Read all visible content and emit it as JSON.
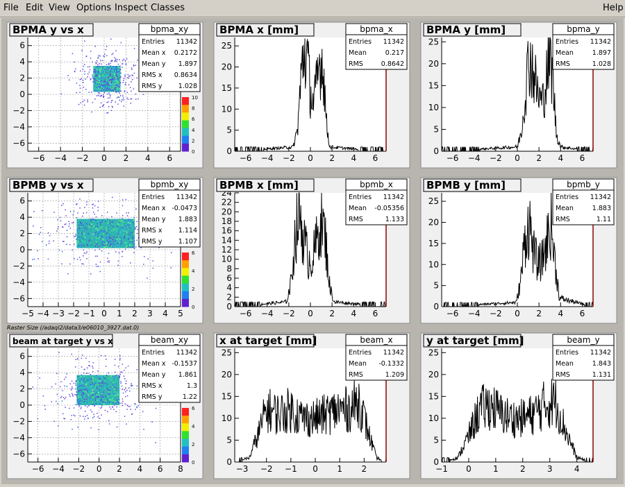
{
  "menu": {
    "items": [
      "File",
      "Edit",
      "View",
      "Options",
      "Inspect",
      "Classes"
    ],
    "help": "Help"
  },
  "caption": "Raster Size (/adaql2/data3/e06010_3927.dat.0)",
  "colors": {
    "pad_bg": "#f0f0f0",
    "frame_bg": "#b8b5ae",
    "histo_line": "#000000",
    "hist_axis_right": "#8b0000",
    "grid": "#909090"
  },
  "palette_labels": {
    "bpma_xy": [
      "0",
      "2",
      "4",
      "6",
      "8",
      "10"
    ],
    "bpmb_xy": [
      "0",
      "2",
      "4",
      "6"
    ],
    "beam_xy": [
      "0",
      "2",
      "4",
      "6"
    ]
  },
  "chart_data": [
    {
      "id": "bpma_xy",
      "type": "heatmap",
      "title": "BPMA y vs x",
      "xlim": [
        -7,
        7
      ],
      "ylim": [
        -7,
        7
      ],
      "xticks": [
        -6,
        -4,
        -2,
        0,
        2,
        4,
        6
      ],
      "yticks": [
        -6,
        -4,
        -2,
        0,
        2,
        4,
        6
      ],
      "core": {
        "x": [
          -1.0,
          1.5
        ],
        "y": [
          0.3,
          3.5
        ]
      },
      "grid": true,
      "stats": {
        "name": "bpma_xy",
        "rows": [
          [
            "Entries",
            "11342"
          ],
          [
            "Mean x",
            "0.2172"
          ],
          [
            "Mean y",
            "1.897"
          ],
          [
            "RMS x",
            "0.8634"
          ],
          [
            "RMS y",
            "1.028"
          ]
        ]
      }
    },
    {
      "id": "bpma_x",
      "type": "line",
      "title": "BPMA x [mm]",
      "xlim": [
        -7,
        7
      ],
      "ylim": [
        0,
        27
      ],
      "xticks": [
        -6,
        -4,
        -2,
        0,
        2,
        4,
        6
      ],
      "yticks": [
        0,
        5,
        10,
        15,
        20,
        25
      ],
      "profile": {
        "x": [
          -7,
          -1.6,
          -1.2,
          -0.9,
          -0.6,
          -0.3,
          0,
          0.3,
          0.6,
          0.9,
          1.2,
          1.5,
          1.8,
          7
        ],
        "y": [
          0,
          1,
          5,
          16,
          24,
          22,
          14,
          11,
          16,
          22,
          20,
          6,
          1,
          0
        ]
      },
      "stats": {
        "name": "bpma_x",
        "rows": [
          [
            "Entries",
            "11342"
          ],
          [
            "Mean",
            "0.217"
          ],
          [
            "RMS",
            "0.8642"
          ]
        ]
      }
    },
    {
      "id": "bpma_y",
      "type": "line",
      "title": "BPMA y [mm]",
      "xlim": [
        -7,
        7
      ],
      "ylim": [
        0,
        26
      ],
      "xticks": [
        -6,
        -4,
        -2,
        0,
        2,
        4,
        6
      ],
      "yticks": [
        0,
        5,
        10,
        15,
        20,
        25
      ],
      "profile": {
        "x": [
          -7,
          0.0,
          0.4,
          0.8,
          1.1,
          1.5,
          1.9,
          2.3,
          2.6,
          3.0,
          3.3,
          3.6,
          4.0,
          7
        ],
        "y": [
          0,
          1,
          5,
          15,
          22,
          18,
          13,
          11,
          15,
          22,
          16,
          4,
          1,
          0
        ]
      },
      "stats": {
        "name": "bpma_y",
        "rows": [
          [
            "Entries",
            "11342"
          ],
          [
            "Mean",
            "1.897"
          ],
          [
            "RMS",
            "1.028"
          ]
        ]
      }
    },
    {
      "id": "bpmb_xy",
      "type": "heatmap",
      "title": "BPMB y vs x",
      "xlim": [
        -5,
        5
      ],
      "ylim": [
        -7,
        7
      ],
      "xticks": [
        -5,
        -4,
        -3,
        -2,
        -1,
        0,
        1,
        2,
        3,
        4,
        5
      ],
      "yticks": [
        -6,
        -4,
        -2,
        0,
        2,
        4,
        6
      ],
      "core": {
        "x": [
          -1.8,
          2.0
        ],
        "y": [
          0.2,
          3.8
        ]
      },
      "grid": true,
      "stats": {
        "name": "bpmb_xy",
        "rows": [
          [
            "Entries",
            "11342"
          ],
          [
            "Mean x",
            "-0.0473"
          ],
          [
            "Mean y",
            "1.883"
          ],
          [
            "RMS x",
            "1.114"
          ],
          [
            "RMS y",
            "1.107"
          ]
        ]
      }
    },
    {
      "id": "bpmb_x",
      "type": "line",
      "title": "BPMB x [mm]",
      "xlim": [
        -7,
        7
      ],
      "ylim": [
        0,
        24
      ],
      "xticks": [
        -6,
        -4,
        -2,
        0,
        2,
        4,
        6
      ],
      "yticks": [
        0,
        2,
        4,
        6,
        8,
        10,
        12,
        14,
        16,
        18,
        20,
        22,
        24
      ],
      "profile": {
        "x": [
          -7,
          -2.2,
          -1.8,
          -1.4,
          -1.0,
          -0.6,
          -0.2,
          0.2,
          0.6,
          1.0,
          1.4,
          1.8,
          2.2,
          7
        ],
        "y": [
          0,
          1,
          5,
          15,
          20,
          14,
          10,
          10,
          14,
          19,
          14,
          4,
          1,
          0
        ]
      },
      "stats": {
        "name": "bpmb_x",
        "rows": [
          [
            "Entries",
            "11342"
          ],
          [
            "Mean",
            "-0.05356"
          ],
          [
            "RMS",
            "1.133"
          ]
        ]
      }
    },
    {
      "id": "bpmb_y",
      "type": "line",
      "title": "BPMB y [mm]",
      "xlim": [
        -7,
        7
      ],
      "ylim": [
        0,
        27
      ],
      "xticks": [
        -6,
        -4,
        -2,
        0,
        2,
        4,
        6
      ],
      "yticks": [
        0,
        5,
        10,
        15,
        20,
        25
      ],
      "profile": {
        "x": [
          -7,
          -0.1,
          0.3,
          0.7,
          1.1,
          1.5,
          1.9,
          2.3,
          2.7,
          3.1,
          3.5,
          3.9,
          7
        ],
        "y": [
          0,
          1,
          6,
          16,
          20,
          13,
          10,
          11,
          15,
          20,
          10,
          2,
          0
        ]
      },
      "stats": {
        "name": "bpmb_y",
        "rows": [
          [
            "Entries",
            "11342"
          ],
          [
            "Mean",
            "1.883"
          ],
          [
            "RMS",
            "1.11"
          ]
        ]
      }
    },
    {
      "id": "beam_xy",
      "type": "heatmap",
      "title": "beam at target y vs x",
      "xlim": [
        -7,
        8
      ],
      "ylim": [
        -7,
        7
      ],
      "xticks": [
        -6,
        -4,
        -2,
        0,
        2,
        4,
        6,
        8
      ],
      "yticks": [
        -6,
        -4,
        -2,
        0,
        2,
        4,
        6
      ],
      "core": {
        "x": [
          -2.2,
          2.0
        ],
        "y": [
          0.0,
          3.7
        ]
      },
      "grid": true,
      "stats": {
        "name": "beam_xy",
        "rows": [
          [
            "Entries",
            "11342"
          ],
          [
            "Mean x",
            "-0.1537"
          ],
          [
            "Mean y",
            "1.861"
          ],
          [
            "RMS x",
            "1.3"
          ],
          [
            "RMS y",
            "1.22"
          ]
        ]
      }
    },
    {
      "id": "beam_x",
      "type": "line",
      "title": "x at target [mm]",
      "xlim": [
        -3.3,
        2.9
      ],
      "ylim": [
        0,
        26
      ],
      "xticks": [
        -3,
        -2,
        -1,
        0,
        1,
        2
      ],
      "yticks": [
        0,
        5,
        10,
        15,
        20,
        25
      ],
      "profile": {
        "x": [
          -3.3,
          -2.7,
          -2.3,
          -2.0,
          -1.5,
          -1.0,
          -0.5,
          0,
          0.5,
          1.0,
          1.4,
          1.8,
          2.1,
          2.5,
          2.9
        ],
        "y": [
          0,
          1,
          7,
          12,
          11,
          12,
          10,
          10,
          11,
          12,
          12,
          14,
          8,
          1,
          0
        ]
      },
      "stats": {
        "name": "beam_x",
        "rows": [
          [
            "Entries",
            "11342"
          ],
          [
            "Mean",
            "-0.1332"
          ],
          [
            "RMS",
            "1.209"
          ]
        ]
      }
    },
    {
      "id": "beam_y",
      "type": "line",
      "title": "y at target [mm]",
      "xlim": [
        -1,
        4.6
      ],
      "ylim": [
        0,
        26
      ],
      "xticks": [
        -1,
        0,
        1,
        2,
        3,
        4
      ],
      "yticks": [
        0,
        5,
        10,
        15,
        20,
        25
      ],
      "profile": {
        "x": [
          -1,
          -0.4,
          0,
          0.4,
          0.8,
          1.2,
          1.6,
          2.0,
          2.4,
          2.8,
          3.2,
          3.6,
          4.0,
          4.6
        ],
        "y": [
          0,
          1,
          6,
          12,
          13,
          11,
          10,
          10,
          11,
          13,
          14,
          7,
          1,
          0
        ]
      },
      "stats": {
        "name": "beam_y",
        "rows": [
          [
            "Entries",
            "11342"
          ],
          [
            "Mean",
            "1.843"
          ],
          [
            "RMS",
            "1.131"
          ]
        ]
      }
    }
  ]
}
